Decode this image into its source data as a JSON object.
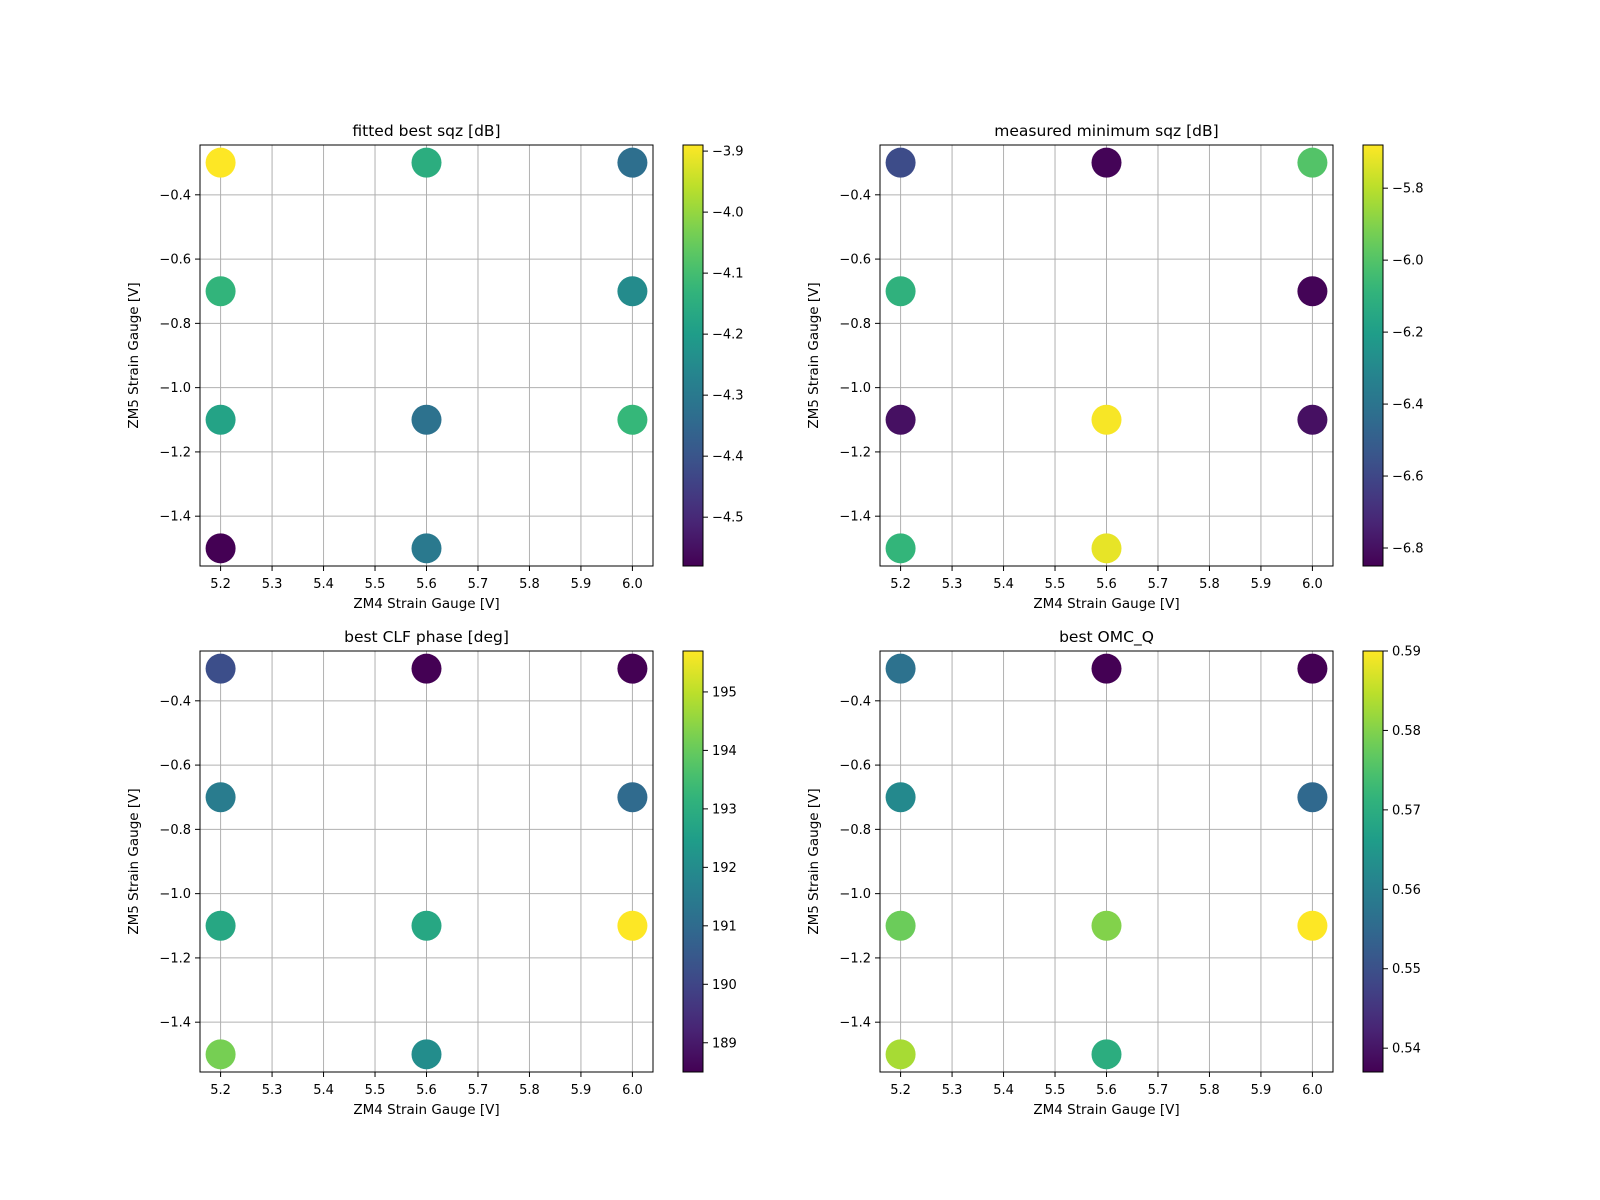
{
  "chart_data": [
    {
      "type": "scatter",
      "title": "fitted best sqz [dB]",
      "xlabel": "ZM4 Strain Gauge [V]",
      "ylabel": "ZM5 Strain Gauge [V]",
      "xlim": [
        5.16,
        6.04
      ],
      "ylim": [
        -1.555,
        -0.245
      ],
      "xticks": [
        "5.2",
        "5.3",
        "5.4",
        "5.5",
        "5.6",
        "5.7",
        "5.8",
        "5.9",
        "6.0"
      ],
      "yticks": [
        "−0.4",
        "−0.6",
        "−0.8",
        "−1.0",
        "−1.2",
        "−1.4"
      ],
      "grid": true,
      "colormap": "viridis",
      "colorbar": {
        "vmin": -4.58,
        "vmax": -3.89,
        "ticks": [
          "−3.9",
          "−4.0",
          "−4.1",
          "−4.2",
          "−4.3",
          "−4.4",
          "−4.5"
        ]
      },
      "points": [
        {
          "x": 5.2,
          "y": -0.3,
          "value": -3.89
        },
        {
          "x": 5.6,
          "y": -0.3,
          "value": -4.15
        },
        {
          "x": 6.0,
          "y": -0.3,
          "value": -4.33
        },
        {
          "x": 5.2,
          "y": -0.7,
          "value": -4.13
        },
        {
          "x": 6.0,
          "y": -0.7,
          "value": -4.25
        },
        {
          "x": 5.2,
          "y": -1.1,
          "value": -4.18
        },
        {
          "x": 5.6,
          "y": -1.1,
          "value": -4.32
        },
        {
          "x": 6.0,
          "y": -1.1,
          "value": -4.12
        },
        {
          "x": 5.2,
          "y": -1.5,
          "value": -4.58
        },
        {
          "x": 5.6,
          "y": -1.5,
          "value": -4.3
        }
      ]
    },
    {
      "type": "scatter",
      "title": "measured minimum sqz [dB]",
      "xlabel": "ZM4 Strain Gauge [V]",
      "ylabel": "ZM5 Strain Gauge [V]",
      "xlim": [
        5.16,
        6.04
      ],
      "ylim": [
        -1.555,
        -0.245
      ],
      "xticks": [
        "5.2",
        "5.3",
        "5.4",
        "5.5",
        "5.6",
        "5.7",
        "5.8",
        "5.9",
        "6.0"
      ],
      "yticks": [
        "−0.4",
        "−0.6",
        "−0.8",
        "−1.0",
        "−1.2",
        "−1.4"
      ],
      "grid": true,
      "colormap": "viridis",
      "colorbar": {
        "vmin": -6.85,
        "vmax": -5.68,
        "ticks": [
          "−5.8",
          "−6.0",
          "−6.2",
          "−6.4",
          "−6.6",
          "−6.8"
        ]
      },
      "points": [
        {
          "x": 5.2,
          "y": -0.3,
          "value": -6.58
        },
        {
          "x": 5.6,
          "y": -0.3,
          "value": -6.84
        },
        {
          "x": 6.0,
          "y": -0.3,
          "value": -6.0
        },
        {
          "x": 5.2,
          "y": -0.7,
          "value": -6.1
        },
        {
          "x": 6.0,
          "y": -0.7,
          "value": -6.84
        },
        {
          "x": 5.2,
          "y": -1.1,
          "value": -6.8
        },
        {
          "x": 5.6,
          "y": -1.1,
          "value": -5.69
        },
        {
          "x": 6.0,
          "y": -1.1,
          "value": -6.8
        },
        {
          "x": 5.2,
          "y": -1.5,
          "value": -6.08
        },
        {
          "x": 5.6,
          "y": -1.5,
          "value": -5.72
        }
      ]
    },
    {
      "type": "scatter",
      "title": "best CLF phase [deg]",
      "xlabel": "ZM4 Strain Gauge [V]",
      "ylabel": "ZM5 Strain Gauge [V]",
      "xlim": [
        5.16,
        6.04
      ],
      "ylim": [
        -1.555,
        -0.245
      ],
      "xticks": [
        "5.2",
        "5.3",
        "5.4",
        "5.5",
        "5.6",
        "5.7",
        "5.8",
        "5.9",
        "6.0"
      ],
      "yticks": [
        "−0.4",
        "−0.6",
        "−0.8",
        "−1.0",
        "−1.2",
        "−1.4"
      ],
      "grid": true,
      "colormap": "viridis",
      "colorbar": {
        "vmin": 188.5,
        "vmax": 195.7,
        "ticks": [
          "195",
          "194",
          "193",
          "192",
          "191",
          "190",
          "189"
        ]
      },
      "points": [
        {
          "x": 5.2,
          "y": -0.3,
          "value": 190.2
        },
        {
          "x": 5.6,
          "y": -0.3,
          "value": 188.5
        },
        {
          "x": 6.0,
          "y": -0.3,
          "value": 188.5
        },
        {
          "x": 5.2,
          "y": -0.7,
          "value": 191.5
        },
        {
          "x": 6.0,
          "y": -0.7,
          "value": 191.0
        },
        {
          "x": 5.2,
          "y": -1.1,
          "value": 192.8
        },
        {
          "x": 5.6,
          "y": -1.1,
          "value": 192.8
        },
        {
          "x": 6.0,
          "y": -1.1,
          "value": 195.7
        },
        {
          "x": 5.2,
          "y": -1.5,
          "value": 194.2
        },
        {
          "x": 5.6,
          "y": -1.5,
          "value": 192.0
        }
      ]
    },
    {
      "type": "scatter",
      "title": "best OMC_Q",
      "xlabel": "ZM4 Strain Gauge [V]",
      "ylabel": "ZM5 Strain Gauge [V]",
      "xlim": [
        5.16,
        6.04
      ],
      "ylim": [
        -1.555,
        -0.245
      ],
      "xticks": [
        "5.2",
        "5.3",
        "5.4",
        "5.5",
        "5.6",
        "5.7",
        "5.8",
        "5.9",
        "6.0"
      ],
      "yticks": [
        "−0.4",
        "−0.6",
        "−0.8",
        "−1.0",
        "−1.2",
        "−1.4"
      ],
      "grid": true,
      "colormap": "viridis",
      "colorbar": {
        "vmin": 0.537,
        "vmax": 0.59,
        "ticks": [
          "0.59",
          "0.58",
          "0.57",
          "0.56",
          "0.55",
          "0.54"
        ]
      },
      "points": [
        {
          "x": 5.2,
          "y": -0.3,
          "value": 0.557
        },
        {
          "x": 5.6,
          "y": -0.3,
          "value": 0.537
        },
        {
          "x": 6.0,
          "y": -0.3,
          "value": 0.537
        },
        {
          "x": 5.2,
          "y": -0.7,
          "value": 0.562
        },
        {
          "x": 6.0,
          "y": -0.7,
          "value": 0.555
        },
        {
          "x": 5.2,
          "y": -1.1,
          "value": 0.578
        },
        {
          "x": 5.6,
          "y": -1.1,
          "value": 0.58
        },
        {
          "x": 6.0,
          "y": -1.1,
          "value": 0.59
        },
        {
          "x": 5.2,
          "y": -1.5,
          "value": 0.583
        },
        {
          "x": 5.6,
          "y": -1.5,
          "value": 0.57
        }
      ]
    }
  ]
}
